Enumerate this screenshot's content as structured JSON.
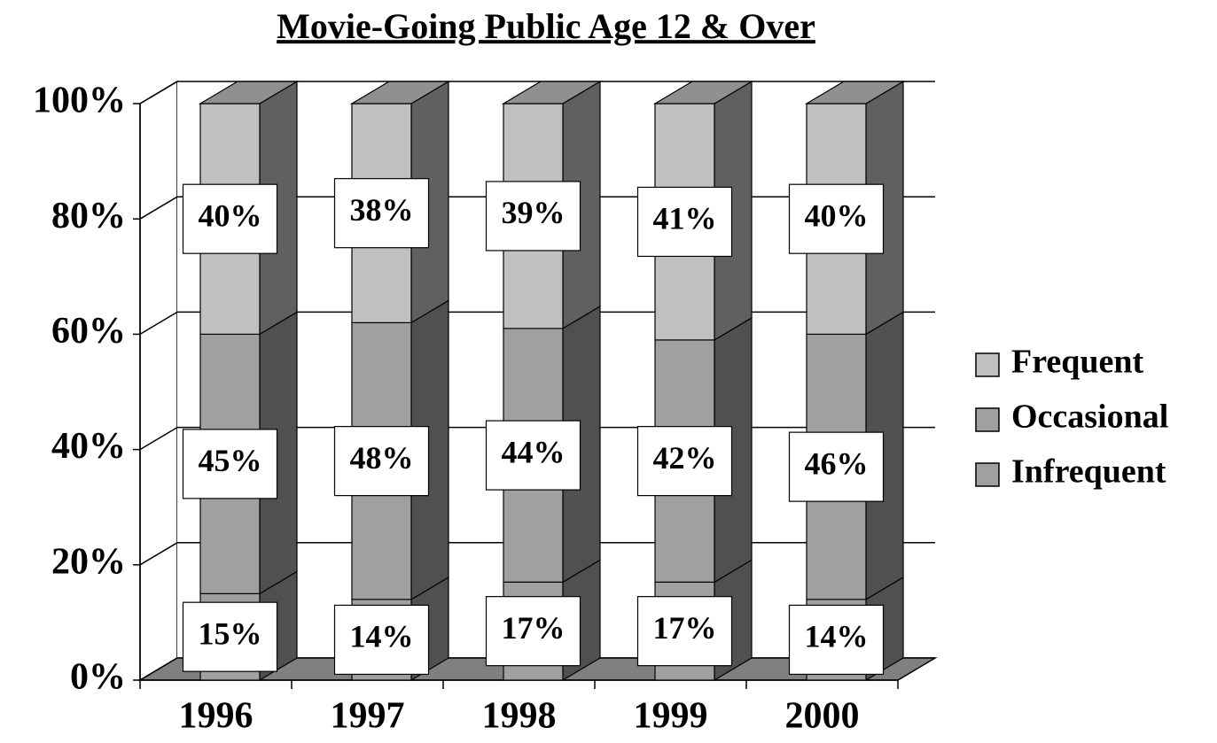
{
  "chart_data": {
    "type": "bar3d_stacked",
    "title": "Movie-Going Public Age 12 & Over",
    "categories": [
      "1996",
      "1997",
      "1998",
      "1999",
      "2000"
    ],
    "series": [
      {
        "name": "Infrequent",
        "color": "#a0a0a0",
        "values": [
          15,
          14,
          17,
          17,
          14
        ],
        "value_labels": [
          "15%",
          "14%",
          "17%",
          "17%",
          "14%"
        ]
      },
      {
        "name": "Occasional",
        "color": "#a0a0a0",
        "values": [
          45,
          48,
          44,
          42,
          46
        ],
        "value_labels": [
          "45%",
          "48%",
          "44%",
          "42%",
          "46%"
        ]
      },
      {
        "name": "Frequent",
        "color": "#c0c0c0",
        "values": [
          40,
          38,
          39,
          41,
          40
        ],
        "value_labels": [
          "40%",
          "38%",
          "39%",
          "41%",
          "40%"
        ]
      }
    ],
    "ylim": [
      0,
      100
    ],
    "yticks": [
      {
        "value": 0,
        "label": "0%"
      },
      {
        "value": 20,
        "label": "20%"
      },
      {
        "value": 40,
        "label": "40%"
      },
      {
        "value": 60,
        "label": "60%"
      },
      {
        "value": 80,
        "label": "80%"
      },
      {
        "value": 100,
        "label": "100%"
      }
    ],
    "grid": true,
    "legend": "right"
  }
}
